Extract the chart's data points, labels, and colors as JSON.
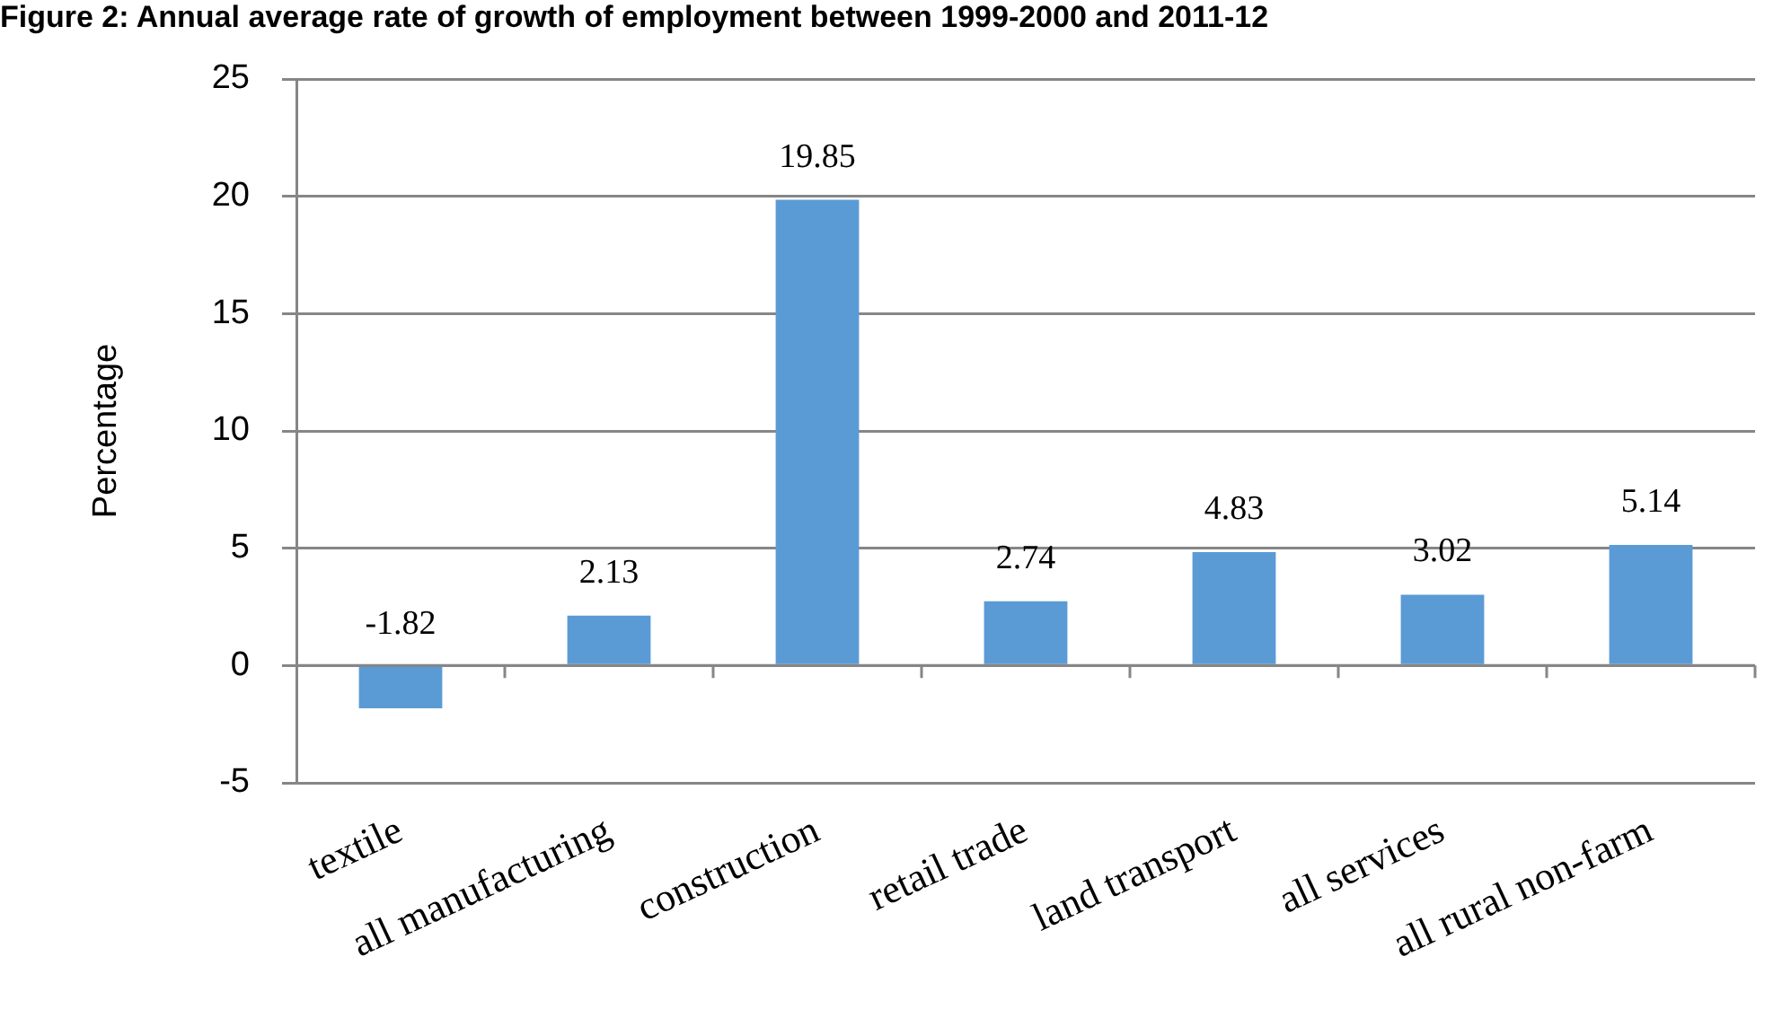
{
  "chart_data": {
    "type": "bar",
    "title": "Figure 2: Annual average rate of growth of employment between 1999-2000 and 2011-12",
    "ylabel": "Percentage",
    "categories": [
      "textile",
      "all manufacturing",
      "construction",
      "retail trade",
      "land transport",
      "all services",
      "all rural non-farm"
    ],
    "values": [
      -1.82,
      2.13,
      19.85,
      2.74,
      4.83,
      3.02,
      5.14
    ],
    "color": "#5b9bd5",
    "ylim": [
      -5,
      25
    ],
    "yticks": [
      -5,
      0,
      5,
      10,
      15,
      20,
      25
    ],
    "grid": "y",
    "data_labels": true
  }
}
